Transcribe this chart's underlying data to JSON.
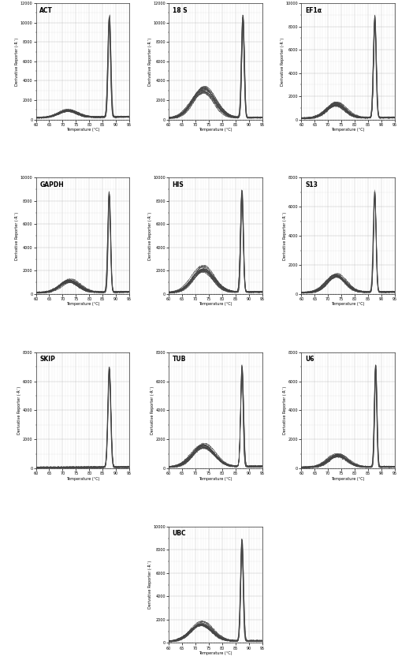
{
  "panels": [
    {
      "title": "ACT",
      "peak_x": 87.5,
      "peak_sigma": 0.5,
      "peak_scale": 0.88,
      "bump_x": 72.0,
      "bump_sigma": 3.5,
      "bump_scale": 0.06,
      "has_bump": true,
      "base": 0.02,
      "ylim_max": 12000,
      "ytick_step": 2000
    },
    {
      "title": "18 S",
      "peak_x": 87.8,
      "peak_sigma": 0.5,
      "peak_scale": 0.88,
      "bump_x": 73.0,
      "bump_sigma": 4.0,
      "bump_scale": 0.25,
      "has_bump": true,
      "base": 0.015,
      "ylim_max": 12000,
      "ytick_step": 2000
    },
    {
      "title": "EF1α",
      "peak_x": 87.5,
      "peak_sigma": 0.5,
      "peak_scale": 0.88,
      "bump_x": 73.0,
      "bump_sigma": 3.5,
      "bump_scale": 0.12,
      "has_bump": true,
      "base": 0.015,
      "ylim_max": 10000,
      "ytick_step": 2000
    },
    {
      "title": "GAPDH",
      "peak_x": 87.5,
      "peak_sigma": 0.5,
      "peak_scale": 0.88,
      "bump_x": 72.5,
      "bump_sigma": 3.5,
      "bump_scale": 0.1,
      "has_bump": true,
      "base": 0.015,
      "ylim_max": 10000,
      "ytick_step": 2000
    },
    {
      "title": "HIS",
      "peak_x": 87.5,
      "peak_sigma": 0.5,
      "peak_scale": 0.88,
      "bump_x": 73.0,
      "bump_sigma": 4.0,
      "bump_scale": 0.2,
      "has_bump": true,
      "base": 0.015,
      "ylim_max": 10000,
      "ytick_step": 2000
    },
    {
      "title": "S13",
      "peak_x": 87.5,
      "peak_sigma": 0.5,
      "peak_scale": 0.88,
      "bump_x": 73.0,
      "bump_sigma": 3.5,
      "bump_scale": 0.15,
      "has_bump": true,
      "base": 0.015,
      "ylim_max": 8000,
      "ytick_step": 2000
    },
    {
      "title": "SKIP",
      "peak_x": 87.5,
      "peak_sigma": 0.5,
      "peak_scale": 0.88,
      "bump_x": 73.0,
      "bump_sigma": 3.5,
      "bump_scale": 0.0,
      "has_bump": false,
      "base": 0.01,
      "ylim_max": 8000,
      "ytick_step": 2000
    },
    {
      "title": "TUB",
      "peak_x": 87.5,
      "peak_sigma": 0.5,
      "peak_scale": 0.88,
      "bump_x": 73.0,
      "bump_sigma": 4.0,
      "bump_scale": 0.18,
      "has_bump": true,
      "base": 0.015,
      "ylim_max": 8000,
      "ytick_step": 2000
    },
    {
      "title": "U6",
      "peak_x": 87.8,
      "peak_sigma": 0.45,
      "peak_scale": 0.88,
      "bump_x": 73.5,
      "bump_sigma": 3.5,
      "bump_scale": 0.1,
      "has_bump": true,
      "base": 0.012,
      "ylim_max": 8000,
      "ytick_step": 2000
    },
    {
      "title": "UBC",
      "peak_x": 87.5,
      "peak_sigma": 0.5,
      "peak_scale": 0.88,
      "bump_x": 72.5,
      "bump_sigma": 4.0,
      "bump_scale": 0.15,
      "has_bump": true,
      "base": 0.015,
      "ylim_max": 10000,
      "ytick_step": 2000
    }
  ],
  "n_curves": 12,
  "x_min": 60.0,
  "x_max": 95.0,
  "x_label": "Temperature (°C)",
  "y_label": "Derivative Reporter (-R´)",
  "line_color": "#444444",
  "bg_color": "#ffffff",
  "grid_major_color": "#bbbbbb",
  "grid_minor_color": "#dddddd",
  "title_fontsize": 5.5,
  "axis_label_fontsize": 3.5,
  "tick_fontsize": 3.5
}
